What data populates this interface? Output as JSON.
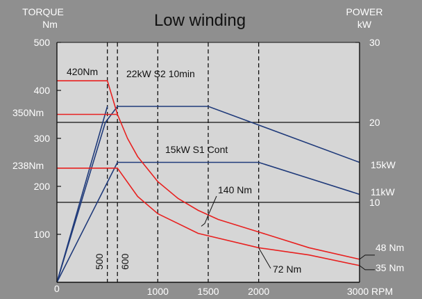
{
  "chart_data": {
    "type": "line",
    "title": "Low winding",
    "y_left_label": [
      "TORQUE",
      "Nm"
    ],
    "y_right_label": [
      "POWER",
      "kW"
    ],
    "x_unit": "RPM",
    "xlim": [
      0,
      3000
    ],
    "ylim_torque": [
      0,
      500
    ],
    "ylim_power": [
      0,
      30
    ],
    "x_ticks": [
      {
        "value": 0,
        "label": "0"
      },
      {
        "value": 1000,
        "label": "1000"
      },
      {
        "value": 1500,
        "label": "1500"
      },
      {
        "value": 2000,
        "label": "2000"
      },
      {
        "value": 3000,
        "label": "3000 RPM"
      }
    ],
    "y_left_ticks": [
      {
        "value": 100,
        "label": "100"
      },
      {
        "value": 200,
        "label": "200"
      },
      {
        "value": 300,
        "label": "300"
      },
      {
        "value": 400,
        "label": "400"
      },
      {
        "value": 500,
        "label": "500"
      }
    ],
    "y_right_ticks": [
      {
        "value": 10,
        "label": "10"
      },
      {
        "value": 20,
        "label": "20"
      },
      {
        "value": 30,
        "label": "30"
      }
    ],
    "base_speeds": [
      {
        "x": 500,
        "label": "500"
      },
      {
        "x": 600,
        "label": "600"
      }
    ],
    "dashed_speeds": [
      500,
      600,
      1000,
      1500,
      2000
    ],
    "power_gridlines": [
      10,
      20
    ],
    "power_series": [
      {
        "name": "22kW S2 10min",
        "points": [
          [
            0,
            0
          ],
          [
            480,
            20
          ],
          [
            600,
            22
          ],
          [
            1500,
            22
          ],
          [
            3000,
            15
          ]
        ],
        "end_label": "15kW"
      },
      {
        "name": "15kW S1 Cont",
        "points": [
          [
            0,
            0
          ],
          [
            600,
            15
          ],
          [
            2000,
            15
          ],
          [
            3000,
            11
          ]
        ],
        "end_label": "11kW"
      },
      {
        "name": "",
        "points": [
          [
            0,
            0
          ],
          [
            500,
            22
          ]
        ],
        "end_label": ""
      }
    ],
    "torque_series": [
      {
        "points": [
          [
            0,
            420
          ],
          [
            500,
            420
          ],
          [
            600,
            350
          ],
          [
            700,
            300
          ],
          [
            800,
            262
          ],
          [
            1000,
            210
          ],
          [
            1200,
            175
          ],
          [
            1400,
            150
          ],
          [
            1600,
            131
          ],
          [
            2000,
            105
          ],
          [
            2500,
            72
          ],
          [
            3000,
            48
          ]
        ],
        "start_label": "420Nm",
        "end_label": "48 Nm"
      },
      {
        "points": [
          [
            0,
            350
          ],
          [
            600,
            350
          ]
        ],
        "start_label": "350Nm",
        "end_label": ""
      },
      {
        "points": [
          [
            0,
            238
          ],
          [
            600,
            238
          ],
          [
            800,
            179
          ],
          [
            1000,
            143
          ],
          [
            1400,
            102
          ],
          [
            2000,
            72
          ],
          [
            2500,
            57
          ],
          [
            3000,
            35
          ]
        ],
        "start_label": "238Nm",
        "end_label": "35 Nm"
      }
    ],
    "annotations": [
      {
        "text": "140 Nm",
        "point": [
          1500,
          140
        ]
      },
      {
        "text": "72 Nm",
        "point": [
          2000,
          72
        ]
      }
    ]
  },
  "colors": {
    "background": "#8f8f8f",
    "plot_area": "#d6d6d6",
    "power": "#1f3a7a",
    "torque": "#e8201f",
    "grid": "#111111",
    "text_outside": "#ffffff",
    "text_inside": "#111111"
  }
}
